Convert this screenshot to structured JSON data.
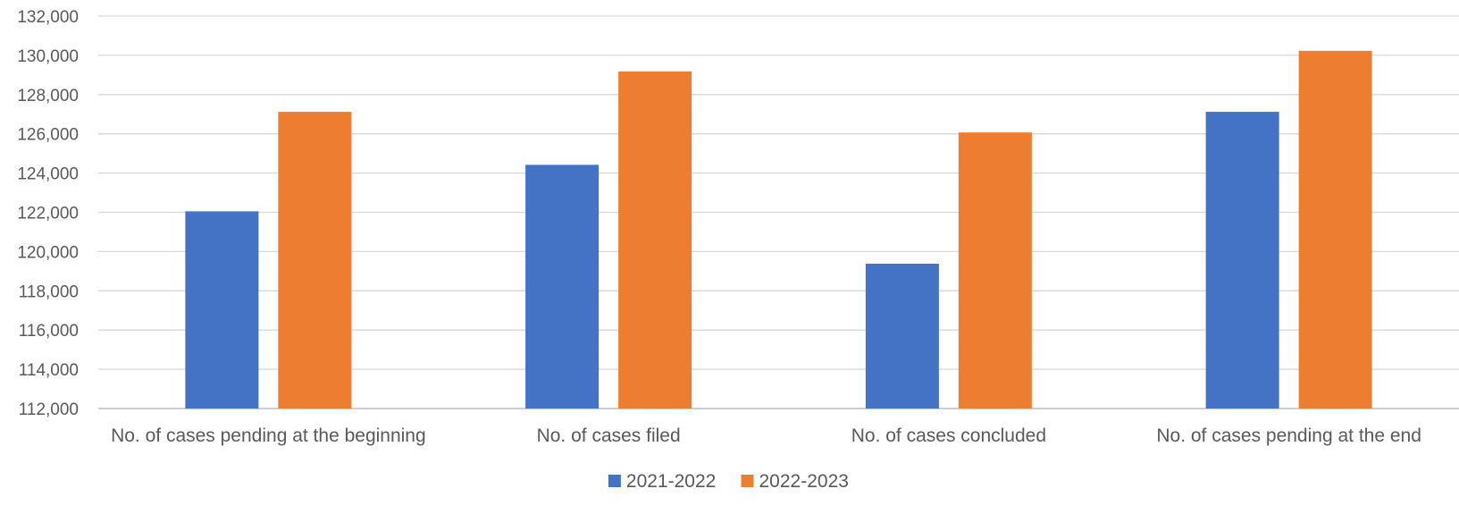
{
  "chart_data": {
    "type": "bar",
    "title": "",
    "xlabel": "",
    "ylabel": "",
    "categories": [
      "No. of cases pending at the beginning",
      "No. of cases filed",
      "No. of cases concluded",
      "No. of cases pending at the end"
    ],
    "series": [
      {
        "name": "2021-2022",
        "color": "#4472C4",
        "values": [
          122050,
          124420,
          119380,
          127120
        ]
      },
      {
        "name": "2022-2023",
        "color": "#ED7D31",
        "values": [
          127120,
          129180,
          126070,
          130230
        ]
      }
    ],
    "ylim": [
      112000,
      132000
    ],
    "yticks": [
      112000,
      114000,
      116000,
      118000,
      120000,
      122000,
      124000,
      126000,
      128000,
      130000,
      132000
    ],
    "ytick_labels": [
      "112,000",
      "114,000",
      "116,000",
      "118,000",
      "120,000",
      "122,000",
      "124,000",
      "126,000",
      "128,000",
      "130,000",
      "132,000"
    ],
    "grid": true,
    "legend_position": "bottom"
  }
}
